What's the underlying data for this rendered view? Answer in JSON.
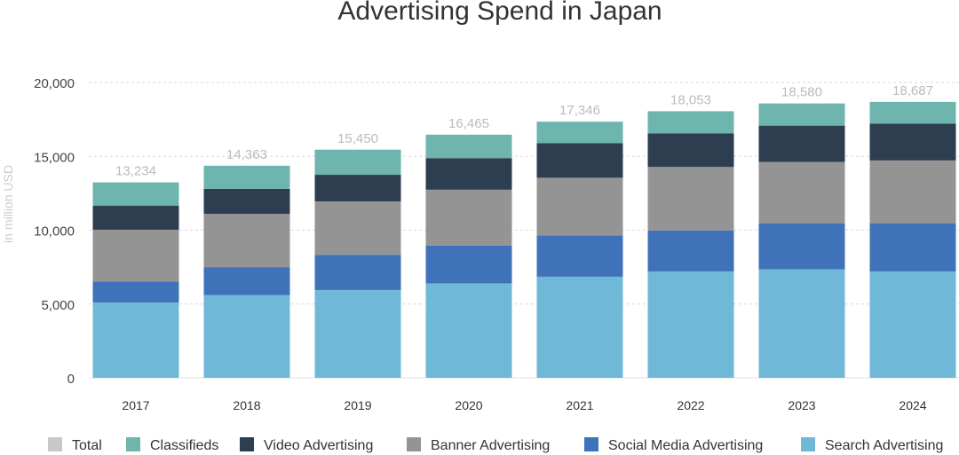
{
  "chart_data": {
    "type": "bar",
    "stacked": true,
    "title": "Advertising Spend in Japan",
    "xlabel": "",
    "ylabel": "in million USD",
    "ylim": [
      0,
      20000
    ],
    "yticks": [
      0,
      5000,
      10000,
      15000,
      20000
    ],
    "ytick_labels": [
      "0",
      "5,000",
      "10,000",
      "15,000",
      "20,000"
    ],
    "grid": true,
    "legend_position": "bottom",
    "categories": [
      "2017",
      "2018",
      "2019",
      "2020",
      "2021",
      "2022",
      "2023",
      "2024"
    ],
    "series": [
      {
        "name": "Search Advertising",
        "color": "#6fb8d8",
        "values": [
          5100,
          5600,
          5950,
          6400,
          6850,
          7200,
          7350,
          7200
        ]
      },
      {
        "name": "Social Media Advertising",
        "color": "#3f72b8",
        "values": [
          1430,
          1900,
          2380,
          2560,
          2800,
          2780,
          3120,
          3270
        ]
      },
      {
        "name": "Banner Advertising",
        "color": "#949494",
        "values": [
          3500,
          3600,
          3620,
          3780,
          3900,
          4300,
          4150,
          4250
        ]
      },
      {
        "name": "Video Advertising",
        "color": "#2d3e50",
        "values": [
          1620,
          1700,
          1800,
          2140,
          2340,
          2280,
          2460,
          2500
        ]
      },
      {
        "name": "Classifieds",
        "color": "#6db5ad",
        "values": [
          1584,
          1563,
          1700,
          1585,
          1456,
          1493,
          1500,
          1467
        ]
      }
    ],
    "totals": {
      "name": "Total",
      "color": "#c8c8c8",
      "values": [
        13234,
        14363,
        15450,
        16465,
        17346,
        18053,
        18580,
        18687
      ],
      "labels": [
        "13,234",
        "14,363",
        "15,450",
        "16,465",
        "17,346",
        "18,053",
        "18,580",
        "18,687"
      ]
    },
    "legend_order": [
      "Total",
      "Classifieds",
      "Video Advertising",
      "Banner Advertising",
      "Social Media Advertising",
      "Search Advertising"
    ]
  }
}
